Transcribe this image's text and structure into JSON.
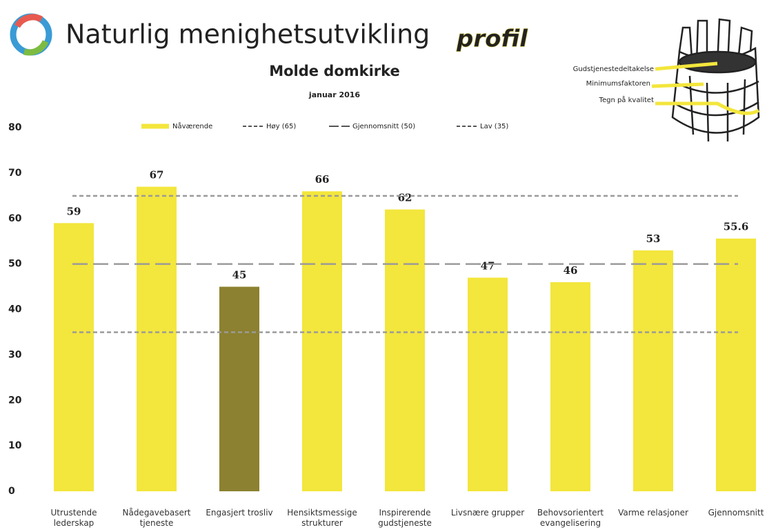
{
  "chart_data": {
    "type": "bar",
    "title": "Naturlig menighetsutvikling",
    "title_suffix": "profil",
    "subtitle": "Molde domkirke",
    "date": "januar 2016",
    "annotations": [
      "Gudstjenestedeltakelse",
      "Minimumsfaktoren",
      "Tegn på kvalitet"
    ],
    "categories": [
      "Utrustende lederskap",
      "Nådegavebasert tjeneste",
      "Engasjert trosliv",
      "Hensiktsmessige strukturer",
      "Inspirerende gudstjeneste",
      "Livsnære grupper",
      "Behovsorientert evangelisering",
      "Varme relasjoner",
      "Gjennomsnitt"
    ],
    "series": [
      {
        "name": "Nåværende",
        "color": "#f3e63c",
        "colors": [
          "#f3e63c",
          "#f3e63c",
          "#8c8130",
          "#f3e63c",
          "#f3e63c",
          "#f3e63c",
          "#f3e63c",
          "#f3e63c",
          "#f3e63c"
        ],
        "values": [
          59,
          67,
          45,
          66,
          62,
          47,
          46,
          53,
          55.6
        ]
      }
    ],
    "reference_lines": [
      {
        "name": "Høy (65)",
        "value": 65,
        "color": "#9a9a9a",
        "dash": "6 4"
      },
      {
        "name": "Gjennomsnitt (50)",
        "value": 50,
        "color": "#9a9a9a",
        "dash": "22 8"
      },
      {
        "name": "Lav (35)",
        "value": 35,
        "color": "#9a9a9a",
        "dash": "6 4"
      }
    ],
    "ylim": [
      0,
      80
    ],
    "yticks": [
      0,
      10,
      20,
      30,
      40,
      50,
      60,
      70,
      80
    ],
    "legend": "top"
  }
}
